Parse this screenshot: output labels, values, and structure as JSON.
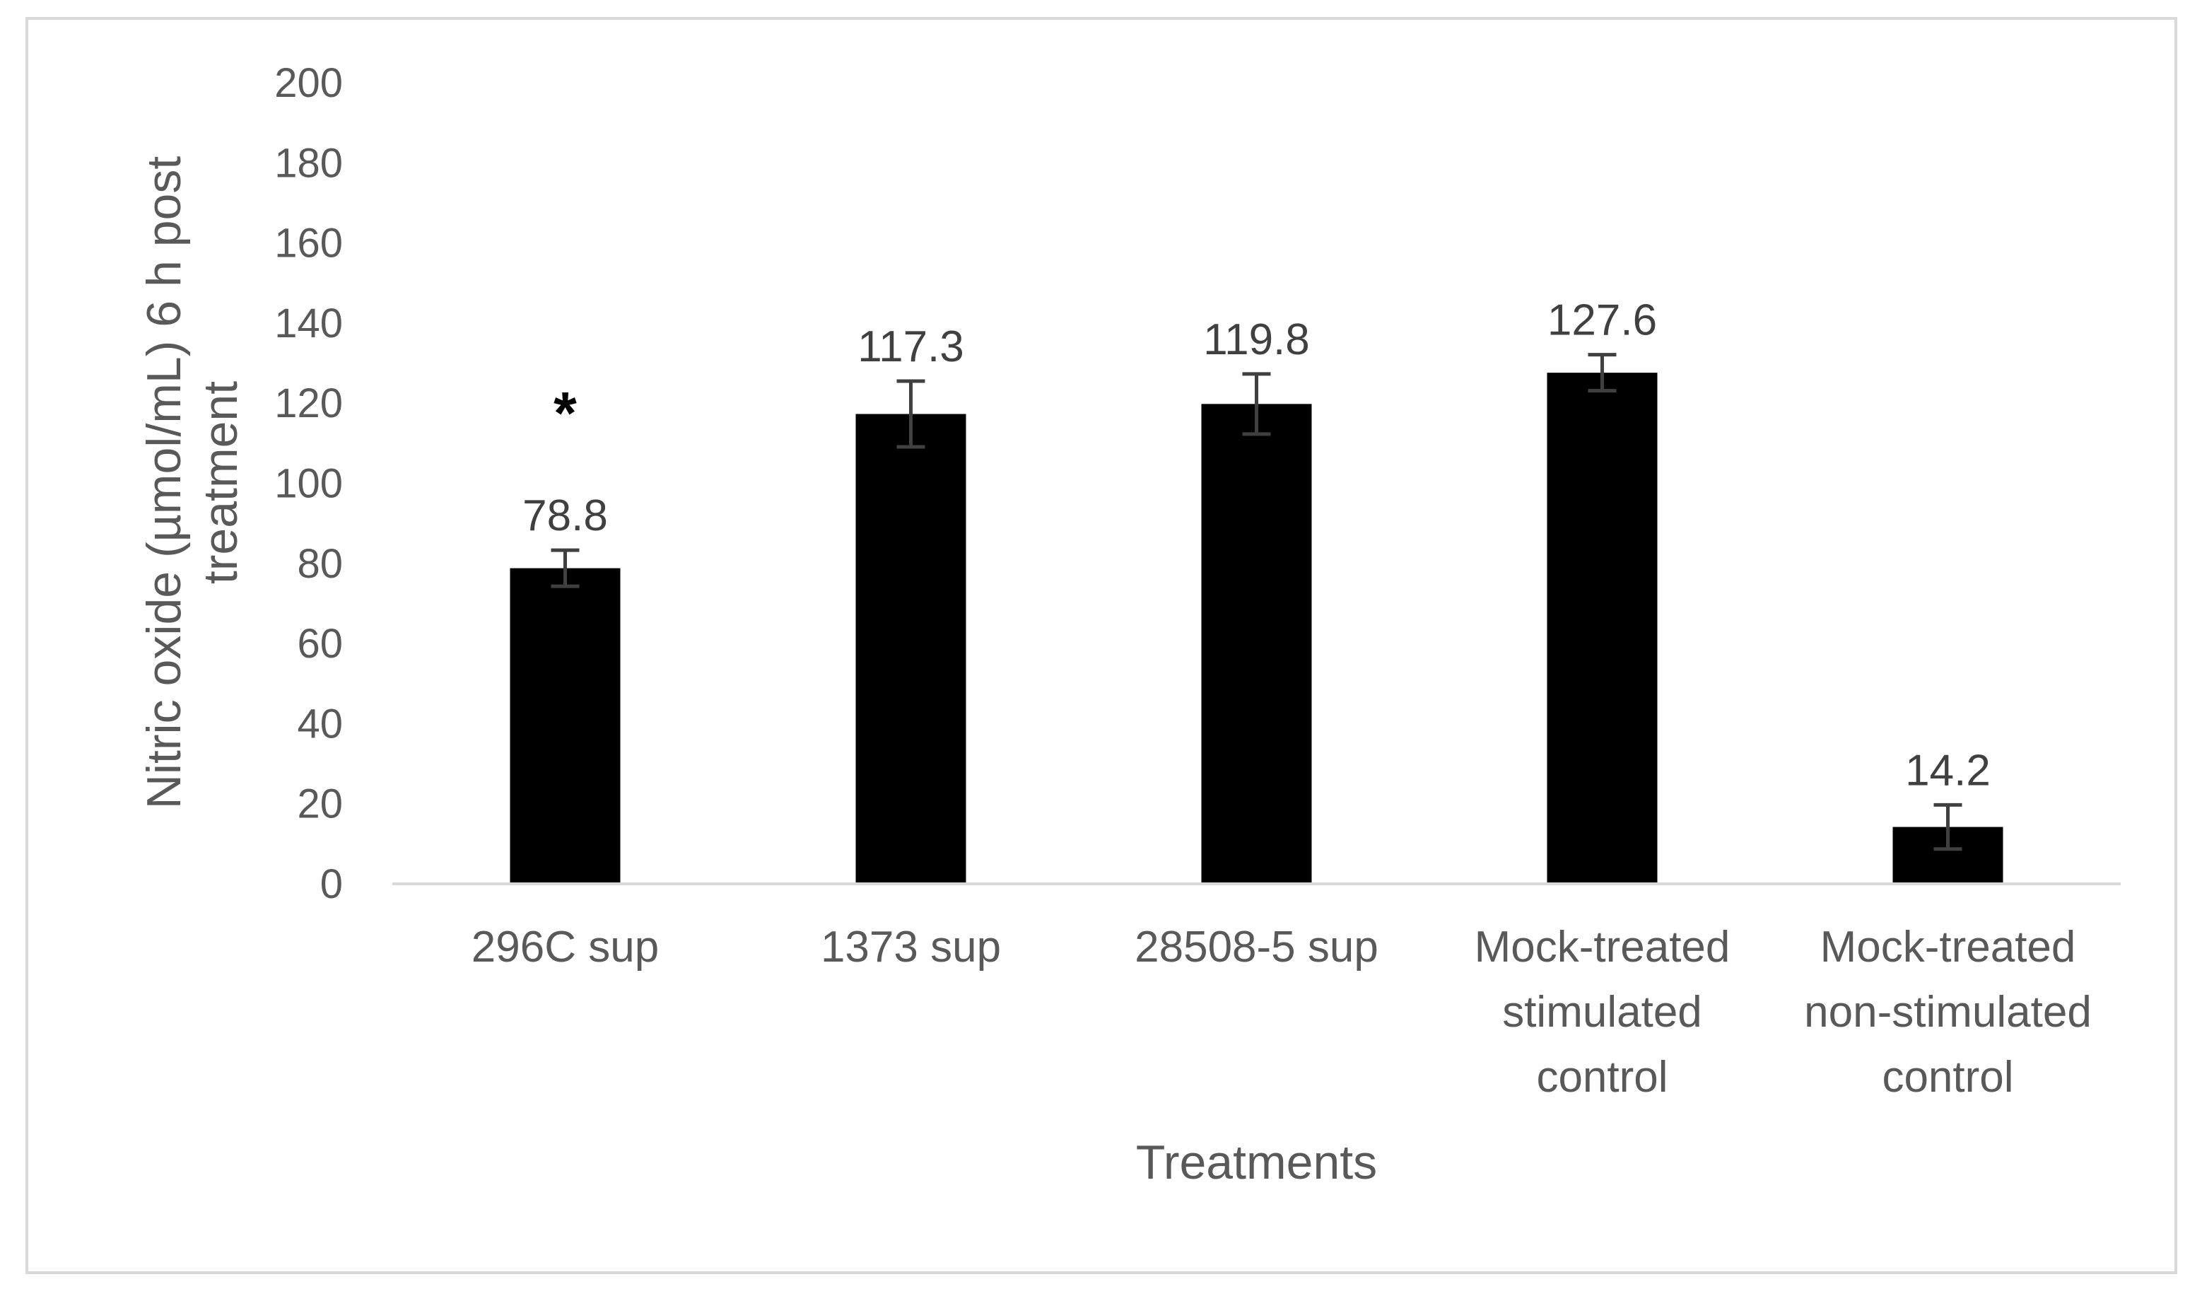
{
  "chart_data": {
    "type": "bar",
    "title": "",
    "xlabel": "Treatments",
    "ylabel": "Nitric oxide (µmol/mL) 6 h post treatment",
    "ylabel_lines": [
      "Nitric oxide (µmol/mL) 6 h post",
      "treatment"
    ],
    "ylim": [
      0,
      200
    ],
    "yticks": [
      0,
      20,
      40,
      60,
      80,
      100,
      120,
      140,
      160,
      180,
      200
    ],
    "grid": false,
    "categories": [
      "296C sup",
      "1373 sup",
      "28508-5 sup",
      "Mock-treated stimulated control",
      "Mock-treated non-stimulated control"
    ],
    "category_lines": [
      [
        "296C sup"
      ],
      [
        "1373 sup"
      ],
      [
        "28508-5 sup"
      ],
      [
        "Mock-treated",
        "stimulated",
        "control"
      ],
      [
        "Mock-treated",
        "non-stimulated",
        "control"
      ]
    ],
    "values": [
      78.8,
      117.3,
      119.8,
      127.6,
      14.2
    ],
    "data_labels": [
      "78.8",
      "117.3",
      "119.8",
      "127.6",
      "14.2"
    ],
    "error_bars": [
      4.5,
      8.2,
      7.5,
      4.5,
      5.5
    ],
    "significance": [
      "*",
      "",
      "",
      "",
      ""
    ],
    "bar_color": "#000000",
    "error_bar_color": "#404040",
    "axis_color": "#d9d9d9",
    "text_color": "#595959"
  }
}
